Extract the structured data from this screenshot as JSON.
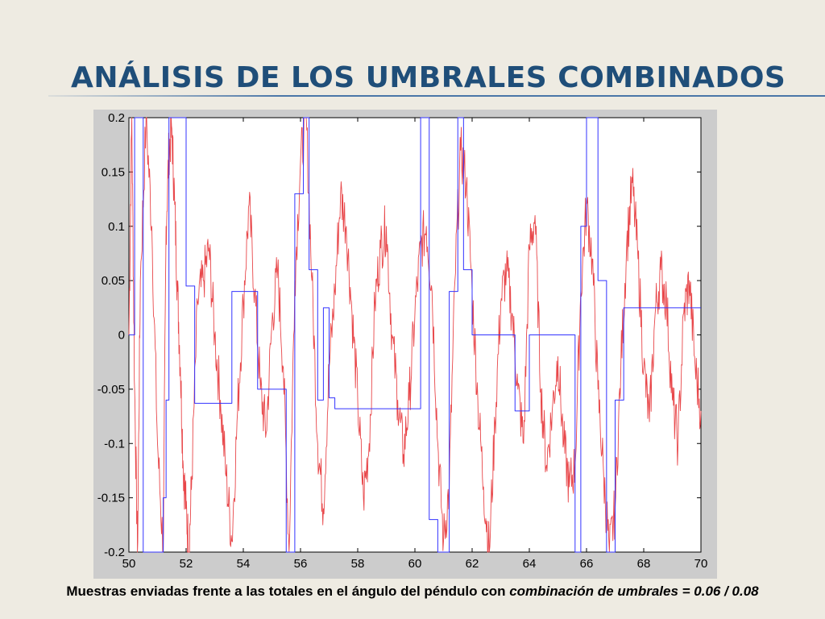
{
  "slide": {
    "title": "ANÁLISIS DE LOS UMBRALES COMBINADOS",
    "caption_plain": "Muestras enviadas frente a las totales en el ángulo del péndulo con ",
    "caption_italic": "combinación de umbrales = 0.06 / 0.08"
  },
  "colors": {
    "title": "#1f4e79",
    "signal": "#e8474a",
    "sent_samples": "#3333ff"
  },
  "chart_data": {
    "type": "line",
    "title": "",
    "xlabel": "",
    "ylabel": "",
    "xlim": [
      50,
      70
    ],
    "ylim": [
      -0.2,
      0.2
    ],
    "grid": false,
    "legend": "none",
    "x_ticks": [
      "50",
      "52",
      "54",
      "56",
      "58",
      "60",
      "62",
      "64",
      "66",
      "68",
      "70"
    ],
    "y_ticks": [
      "0.2",
      "0.15",
      "0.1",
      "0.05",
      "0",
      "-0.05",
      "-0.1",
      "-0.15",
      "-0.2"
    ],
    "series": [
      {
        "color": "#e8474a",
        "style": "line",
        "x": [
          50.0,
          50.1,
          50.2,
          50.3,
          50.4,
          50.6,
          50.8,
          51.0,
          51.2,
          51.3,
          51.4,
          51.5,
          51.6,
          51.7,
          51.8,
          51.9,
          52.0,
          52.1,
          52.2,
          52.4,
          52.6,
          52.8,
          53.0,
          53.2,
          53.4,
          53.6,
          53.8,
          54.0,
          54.2,
          54.4,
          54.6,
          54.8,
          55.0,
          55.2,
          55.4,
          55.6,
          55.8,
          56.0,
          56.2,
          56.4,
          56.6,
          56.8,
          57.0,
          57.2,
          57.4,
          57.6,
          57.8,
          58.0,
          58.2,
          58.4,
          58.6,
          58.8,
          59.0,
          59.2,
          59.4,
          59.6,
          59.8,
          60.0,
          60.2,
          60.4,
          60.6,
          60.8,
          61.0,
          61.2,
          61.4,
          61.6,
          61.8,
          62.0,
          62.2,
          62.4,
          62.6,
          62.8,
          63.0,
          63.2,
          63.4,
          63.6,
          63.8,
          64.0,
          64.2,
          64.4,
          64.6,
          64.8,
          65.0,
          65.2,
          65.4,
          65.6,
          65.8,
          66.0,
          66.2,
          66.4,
          66.6,
          66.8,
          67.0,
          67.2,
          67.4,
          67.6,
          67.8,
          68.0,
          68.2,
          68.4,
          68.6,
          68.8,
          69.0,
          69.2,
          69.4,
          69.6,
          69.8,
          70.0
        ],
        "y": [
          0.0,
          0.2,
          -0.05,
          -0.2,
          0.05,
          0.2,
          0.1,
          -0.1,
          -0.2,
          0.1,
          0.17,
          0.19,
          0.12,
          0.04,
          -0.03,
          -0.12,
          -0.16,
          -0.2,
          -0.13,
          0.03,
          0.05,
          0.08,
          0.0,
          -0.06,
          -0.13,
          -0.19,
          -0.07,
          0.03,
          0.12,
          0.04,
          -0.05,
          -0.09,
          0.01,
          0.06,
          -0.03,
          -0.2,
          0.05,
          0.16,
          0.2,
          0.05,
          -0.1,
          -0.16,
          -0.03,
          0.04,
          0.13,
          0.1,
          0.02,
          -0.06,
          -0.15,
          -0.1,
          0.03,
          0.08,
          0.1,
          0.0,
          -0.06,
          -0.11,
          -0.06,
          0.02,
          0.08,
          0.1,
          0.04,
          -0.1,
          -0.19,
          -0.14,
          0.05,
          0.17,
          0.14,
          0.04,
          -0.06,
          -0.14,
          -0.2,
          -0.08,
          0.03,
          0.06,
          0.02,
          -0.05,
          -0.1,
          0.08,
          0.11,
          -0.05,
          -0.12,
          -0.07,
          -0.02,
          -0.1,
          -0.14,
          -0.12,
          0.04,
          0.12,
          0.07,
          -0.05,
          -0.13,
          -0.2,
          -0.16,
          -0.03,
          0.08,
          0.14,
          0.07,
          -0.03,
          -0.08,
          0.02,
          0.06,
          0.03,
          -0.06,
          -0.1,
          0.02,
          0.05,
          -0.03,
          -0.07
        ]
      },
      {
        "color": "#3333ff",
        "style": "step",
        "x": [
          50.0,
          50.2,
          50.5,
          51.2,
          51.3,
          51.4,
          51.5,
          52.0,
          52.3,
          53.3,
          53.6,
          54.5,
          55.0,
          55.5,
          55.8,
          56.1,
          56.3,
          56.6,
          56.8,
          57.0,
          57.2,
          57.5,
          57.7,
          58.2,
          59.2,
          60.2,
          60.5,
          60.8,
          61.2,
          61.5,
          61.7,
          62.0,
          62.3,
          63.5,
          64.0,
          64.5,
          65.2,
          65.6,
          65.8,
          66.0,
          66.4,
          66.7,
          67.0,
          67.3,
          68.2,
          70.0
        ],
        "y": [
          0.0,
          0.2,
          -0.2,
          -0.15,
          -0.06,
          0.2,
          0.2,
          0.045,
          -0.063,
          -0.063,
          0.04,
          -0.05,
          -0.05,
          -0.2,
          0.13,
          0.2,
          0.06,
          -0.06,
          0.025,
          -0.058,
          -0.068,
          -0.068,
          -0.068,
          -0.068,
          -0.068,
          0.2,
          -0.17,
          -0.2,
          0.04,
          0.2,
          0.06,
          0.0,
          0.0,
          -0.07,
          0.0,
          0.0,
          0.0,
          -0.2,
          0.1,
          0.2,
          0.05,
          -0.2,
          -0.06,
          0.025,
          0.025,
          0.025
        ]
      }
    ]
  }
}
